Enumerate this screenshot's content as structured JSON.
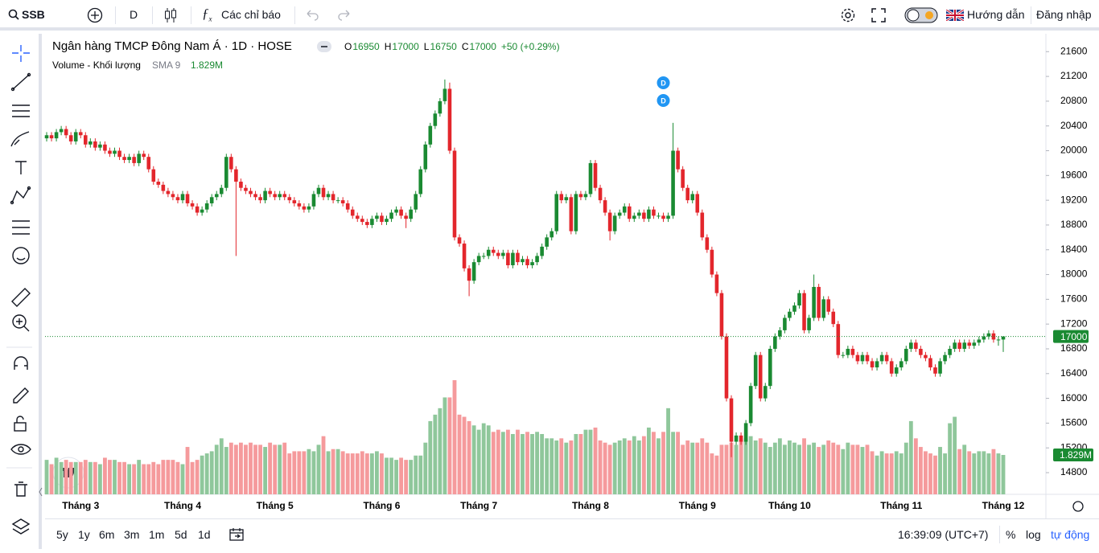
{
  "toolbar": {
    "symbol": "SSB",
    "interval": "D",
    "indicators": "Các chỉ báo",
    "guide": "Hướng dẫn",
    "login": "Đăng nhập"
  },
  "bottom_bar": {
    "ranges": [
      "5y",
      "1y",
      "6m",
      "3m",
      "1m",
      "5d",
      "1d"
    ],
    "clock": "16:39:09 (UTC+7)",
    "percent": "%",
    "log": "log",
    "auto": "tự động"
  },
  "chart_data": {
    "type": "candlestick",
    "title": "Ngân hàng TMCP Đông Nam Á · 1D · HOSE",
    "ohlc_letters": [
      "O",
      "H",
      "L",
      "C"
    ],
    "change": "+50 (+0.29%)",
    "up_color": "#1a8a32",
    "down_color": "#e3262c",
    "grid": false,
    "ylim": [
      14450,
      21850
    ],
    "yticks": [
      14800,
      15200,
      15600,
      16000,
      16400,
      16800,
      17200,
      17600,
      18000,
      18400,
      18800,
      19200,
      19600,
      20000,
      20400,
      20800,
      21200,
      21600
    ],
    "markers": [
      "D",
      "D"
    ],
    "categories": [
      null,
      null,
      null,
      null,
      null,
      null,
      null,
      "Tháng 3",
      null,
      null,
      null,
      null,
      null,
      null,
      null,
      null,
      null,
      null,
      null,
      null,
      null,
      null,
      null,
      null,
      null,
      null,
      null,
      null,
      "Tháng 4",
      null,
      null,
      null,
      null,
      null,
      null,
      null,
      null,
      null,
      null,
      null,
      null,
      null,
      null,
      null,
      null,
      null,
      null,
      "Tháng 5",
      null,
      null,
      null,
      null,
      null,
      null,
      null,
      null,
      null,
      null,
      null,
      null,
      null,
      null,
      null,
      null,
      null,
      null,
      null,
      null,
      null,
      "Tháng 6",
      null,
      null,
      null,
      null,
      null,
      null,
      null,
      null,
      null,
      null,
      null,
      null,
      null,
      null,
      null,
      null,
      null,
      null,
      null,
      "Tháng 7",
      null,
      null,
      null,
      null,
      null,
      null,
      null,
      null,
      null,
      null,
      null,
      null,
      null,
      null,
      null,
      null,
      null,
      null,
      null,
      null,
      null,
      null,
      "Tháng 8",
      null,
      null,
      null,
      null,
      null,
      null,
      null,
      null,
      null,
      null,
      null,
      null,
      null,
      null,
      null,
      null,
      null,
      null,
      null,
      null,
      null,
      "Tháng 9",
      null,
      null,
      null,
      null,
      null,
      null,
      null,
      null,
      null,
      null,
      null,
      null,
      null,
      null,
      null,
      null,
      null,
      null,
      "Tháng 10",
      null,
      null,
      null,
      null,
      null,
      null,
      null,
      null,
      null,
      null,
      null,
      null,
      null,
      null,
      null,
      null,
      null,
      null,
      null,
      null,
      null,
      null,
      "Tháng 11",
      null,
      null,
      null,
      null,
      null,
      null,
      null,
      null,
      null,
      null,
      null,
      null,
      null,
      null,
      null,
      null,
      null,
      null,
      null,
      null,
      "Tháng 12"
    ],
    "open": [
      20200,
      20250,
      20200,
      20300,
      20350,
      20250,
      20150,
      20300,
      20250,
      20100,
      20150,
      20050,
      20100,
      20000,
      19950,
      20000,
      19900,
      19850,
      19900,
      19800,
      19950,
      19900,
      19700,
      19500,
      19450,
      19350,
      19300,
      19250,
      19200,
      19300,
      19150,
      19100,
      19000,
      19050,
      19150,
      19250,
      19300,
      19400,
      19900,
      19700,
      19500,
      19400,
      19350,
      19300,
      19250,
      19200,
      19350,
      19300,
      19250,
      19300,
      19250,
      19200,
      19150,
      19100,
      19050,
      19100,
      19300,
      19400,
      19250,
      19300,
      19200,
      19200,
      19150,
      19050,
      18950,
      18900,
      18850,
      18800,
      18900,
      18950,
      18850,
      18900,
      19000,
      19050,
      18950,
      18900,
      19050,
      19300,
      19700,
      20100,
      20400,
      20600,
      20800,
      21000,
      20000,
      18600,
      18500,
      18100,
      17900,
      18200,
      18300,
      18300,
      18400,
      18350,
      18300,
      18350,
      18150,
      18350,
      18200,
      18250,
      18150,
      18200,
      18300,
      18450,
      18600,
      18700,
      19300,
      19200,
      19250,
      18700,
      19300,
      19250,
      19300,
      19800,
      19400,
      19200,
      19000,
      18700,
      18950,
      19000,
      19100,
      18900,
      18950,
      19000,
      18900,
      19050,
      18950,
      18950,
      18900,
      18950,
      20000,
      19700,
      19400,
      19200,
      19300,
      19000,
      18600,
      18400,
      18000,
      17700,
      17000,
      16000,
      15300,
      15400,
      15300,
      15600,
      16200,
      16700,
      16000,
      16200,
      16800,
      17000,
      17100,
      17300,
      17400,
      17500,
      17700,
      17100,
      17300,
      17800,
      17300,
      17600,
      17400,
      17200,
      16700,
      16700,
      16800,
      16700,
      16600,
      16700,
      16600,
      16500,
      16600,
      16700,
      16600,
      16400,
      16500,
      16600,
      16800,
      16900,
      16800,
      16700,
      16650,
      16500,
      16400,
      16600,
      16700,
      16800,
      16900,
      16800,
      16900,
      16850,
      16900,
      16950,
      17000,
      17050,
      16950,
      16950
    ],
    "high": [
      20300,
      20300,
      20350,
      20400,
      20400,
      20300,
      20350,
      20350,
      20300,
      20200,
      20200,
      20150,
      20150,
      20050,
      20050,
      20050,
      19950,
      19950,
      19950,
      20000,
      20000,
      19950,
      19750,
      19550,
      19500,
      19400,
      19350,
      19300,
      19350,
      19350,
      19200,
      19150,
      19100,
      19200,
      19300,
      19350,
      19450,
      19950,
      19950,
      19750,
      19550,
      19450,
      19400,
      19350,
      19300,
      19400,
      19400,
      19350,
      19350,
      19350,
      19300,
      19250,
      19200,
      19150,
      19150,
      19350,
      19450,
      19450,
      19350,
      19350,
      19250,
      19250,
      19200,
      19100,
      19000,
      18950,
      18900,
      18950,
      19000,
      19000,
      18950,
      19050,
      19100,
      19100,
      19000,
      19100,
      19350,
      19750,
      20150,
      20450,
      20650,
      20850,
      21150,
      21100,
      20050,
      18650,
      18550,
      18150,
      18250,
      18350,
      18350,
      18450,
      18450,
      18400,
      18400,
      18400,
      18400,
      18400,
      18300,
      18300,
      18250,
      18350,
      18500,
      18650,
      18750,
      19350,
      19350,
      19300,
      19300,
      19350,
      19350,
      19350,
      19850,
      19850,
      19450,
      19250,
      19050,
      19000,
      19050,
      19150,
      19150,
      19000,
      19050,
      19050,
      19100,
      19100,
      19000,
      19000,
      19000,
      20450,
      20050,
      19750,
      19450,
      19350,
      19350,
      19050,
      18650,
      18450,
      18050,
      17750,
      17050,
      16050,
      15450,
      15450,
      15650,
      16250,
      16750,
      16750,
      16250,
      16850,
      17050,
      17150,
      17350,
      17450,
      17550,
      17750,
      17750,
      17350,
      18000,
      17850,
      17650,
      17650,
      17450,
      17250,
      16750,
      16850,
      16850,
      16750,
      16750,
      16750,
      16650,
      16650,
      16750,
      16750,
      16650,
      16550,
      16650,
      16850,
      16950,
      16950,
      16850,
      16750,
      16700,
      16550,
      16650,
      16750,
      16850,
      16950,
      16950,
      16950,
      16950,
      16950,
      17000,
      17050,
      17100,
      17100,
      17000,
      17000
    ],
    "low": [
      20150,
      20150,
      20150,
      20250,
      20200,
      20100,
      20100,
      20200,
      20050,
      20050,
      20000,
      20000,
      19950,
      19900,
      19900,
      19850,
      19800,
      19800,
      19750,
      19750,
      19850,
      19650,
      19450,
      19400,
      19300,
      19250,
      19200,
      19150,
      19150,
      19100,
      19050,
      18950,
      18950,
      19000,
      19100,
      19200,
      19250,
      19350,
      19650,
      18300,
      19350,
      19300,
      19250,
      19200,
      19150,
      19150,
      19250,
      19200,
      19200,
      19200,
      19150,
      19100,
      19050,
      19000,
      19000,
      19050,
      19250,
      19200,
      19200,
      19150,
      19150,
      19100,
      19000,
      18900,
      18850,
      18800,
      18750,
      18750,
      18850,
      18800,
      18800,
      18850,
      18950,
      18900,
      18750,
      18850,
      19000,
      19250,
      19650,
      20050,
      20350,
      20550,
      20750,
      19950,
      18550,
      18450,
      18050,
      17650,
      17850,
      18150,
      18250,
      18250,
      18300,
      18250,
      18250,
      18100,
      18100,
      18150,
      18150,
      18100,
      18100,
      18150,
      18250,
      18400,
      18550,
      18650,
      19150,
      19150,
      18650,
      18650,
      19200,
      19200,
      19250,
      19350,
      19150,
      18950,
      18550,
      18650,
      18900,
      18950,
      18850,
      18850,
      18900,
      18850,
      18850,
      18900,
      18900,
      18850,
      18850,
      18900,
      19650,
      19350,
      19150,
      19150,
      18950,
      18550,
      18350,
      17950,
      17650,
      16950,
      15950,
      15050,
      15250,
      15250,
      15250,
      15550,
      16150,
      15950,
      15950,
      16150,
      16750,
      16950,
      17050,
      17250,
      17350,
      17450,
      17050,
      17050,
      17250,
      17250,
      17250,
      17350,
      17150,
      16650,
      16650,
      16650,
      16650,
      16550,
      16550,
      16550,
      16450,
      16450,
      16550,
      16550,
      16350,
      16350,
      16450,
      16550,
      16750,
      16750,
      16650,
      16600,
      16450,
      16350,
      16350,
      16550,
      16650,
      16750,
      16750,
      16750,
      16800,
      16800,
      16850,
      16900,
      16950,
      16900,
      16850,
      16750
    ],
    "close": [
      20250,
      20200,
      20300,
      20350,
      20250,
      20150,
      20300,
      20250,
      20100,
      20150,
      20050,
      20100,
      20000,
      19950,
      20000,
      19900,
      19850,
      19900,
      19800,
      19950,
      19900,
      19700,
      19500,
      19450,
      19350,
      19300,
      19250,
      19200,
      19300,
      19150,
      19100,
      19000,
      19050,
      19150,
      19250,
      19300,
      19400,
      19900,
      19700,
      19500,
      19400,
      19350,
      19300,
      19250,
      19200,
      19350,
      19300,
      19250,
      19300,
      19250,
      19200,
      19150,
      19100,
      19050,
      19100,
      19300,
      19400,
      19250,
      19300,
      19200,
      19200,
      19150,
      19050,
      18950,
      18900,
      18850,
      18800,
      18900,
      18950,
      18850,
      18900,
      19000,
      19050,
      18950,
      18900,
      19050,
      19300,
      19700,
      20100,
      20400,
      20600,
      20800,
      21000,
      20000,
      18600,
      18500,
      18100,
      17900,
      18200,
      18300,
      18300,
      18400,
      18350,
      18300,
      18350,
      18150,
      18350,
      18200,
      18250,
      18150,
      18200,
      18300,
      18450,
      18600,
      18700,
      19300,
      19200,
      19250,
      18700,
      19300,
      19250,
      19300,
      19800,
      19400,
      19200,
      19000,
      18700,
      18950,
      19000,
      19100,
      18900,
      18950,
      19000,
      18900,
      19050,
      18950,
      18950,
      18900,
      18950,
      20000,
      19700,
      19400,
      19200,
      19300,
      19000,
      18600,
      18400,
      18000,
      17700,
      17000,
      16000,
      15300,
      15400,
      15300,
      15600,
      16200,
      16700,
      16000,
      16200,
      16800,
      17000,
      17100,
      17300,
      17400,
      17500,
      17700,
      17100,
      17300,
      17800,
      17300,
      17600,
      17400,
      17200,
      16700,
      16700,
      16800,
      16700,
      16600,
      16700,
      16600,
      16500,
      16600,
      16700,
      16600,
      16400,
      16500,
      16600,
      16800,
      16900,
      16800,
      16700,
      16650,
      16500,
      16400,
      16600,
      16700,
      16800,
      16900,
      16800,
      16900,
      16850,
      16900,
      16950,
      17000,
      17050,
      16950,
      16950,
      17000
    ],
    "volume": {
      "title": "Volume - Khối lượng",
      "sma": "SMA 9",
      "readout": {
        "value": 1.829,
        "label": "1.829M"
      },
      "values": [
        1.6,
        1.4,
        1.7,
        1.5,
        1.6,
        1.5,
        1.5,
        1.5,
        1.6,
        1.5,
        1.5,
        1.4,
        1.7,
        1.6,
        1.6,
        1.5,
        1.5,
        1.4,
        1.4,
        1.6,
        1.4,
        1.4,
        1.5,
        1.4,
        1.6,
        1.6,
        1.6,
        1.5,
        1.4,
        2.2,
        1.5,
        1.6,
        1.8,
        1.9,
        2.0,
        2.3,
        2.6,
        2.2,
        2.4,
        2.3,
        2.4,
        2.3,
        2.4,
        2.3,
        2.3,
        2.2,
        2.4,
        2.3,
        2.3,
        2.4,
        1.9,
        2.0,
        2.0,
        2.0,
        2.1,
        2.0,
        2.3,
        2.7,
        2.0,
        2.1,
        2.1,
        2.0,
        1.9,
        1.9,
        1.9,
        2.0,
        1.9,
        1.9,
        2.0,
        1.9,
        1.7,
        1.7,
        1.6,
        1.7,
        1.6,
        1.6,
        1.8,
        1.8,
        2.4,
        3.4,
        3.7,
        4.0,
        4.5,
        4.5,
        5.3,
        3.7,
        3.6,
        3.4,
        3.2,
        3.0,
        3.3,
        3.2,
        2.9,
        3.0,
        2.9,
        3.0,
        2.8,
        3.0,
        2.8,
        2.9,
        2.8,
        2.9,
        2.8,
        2.6,
        2.6,
        2.5,
        2.6,
        2.4,
        2.5,
        2.8,
        2.8,
        3.0,
        3.0,
        3.1,
        2.5,
        2.4,
        2.3,
        2.4,
        2.5,
        2.6,
        2.5,
        2.7,
        2.5,
        2.7,
        3.1,
        2.9,
        2.6,
        2.9,
        4.0,
        2.9,
        2.9,
        2.3,
        2.5,
        2.4,
        2.4,
        2.6,
        2.4,
        1.9,
        1.8,
        2.3,
        2.3,
        2.4,
        2.3,
        2.5,
        2.6,
        2.7,
        2.5,
        2.6,
        2.4,
        2.2,
        2.4,
        2.6,
        2.3,
        2.5,
        2.4,
        2.3,
        2.6,
        2.3,
        2.4,
        2.2,
        2.3,
        2.5,
        2.4,
        2.3,
        2.1,
        2.4,
        2.3,
        2.3,
        2.2,
        2.3,
        2.0,
        1.8,
        2.0,
        1.9,
        1.9,
        2.0,
        1.9,
        2.4,
        3.4,
        2.6,
        2.2,
        2.0,
        1.9,
        1.8,
        2.2,
        1.9,
        3.3,
        3.6,
        2.1,
        2.3,
        2.0,
        1.9,
        2.0,
        2.0,
        1.9,
        2.1,
        1.9,
        1.829
      ]
    }
  }
}
